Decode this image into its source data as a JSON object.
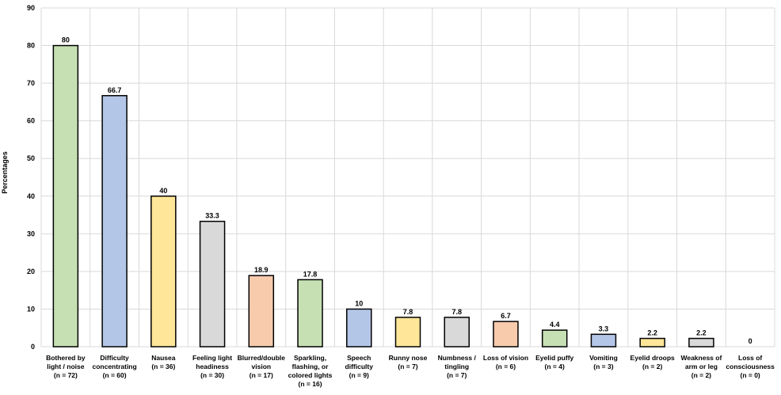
{
  "chart_data": {
    "type": "bar",
    "title": "",
    "xlabel": "",
    "ylabel": "Percentages",
    "ylim": [
      0,
      90
    ],
    "yticks": [
      0,
      10,
      20,
      30,
      40,
      50,
      60,
      70,
      80,
      90
    ],
    "grid": true,
    "categories": [
      [
        "Bothered by",
        "light / noise",
        "(n = 72)"
      ],
      [
        "Difficulty",
        "concentrating",
        "(n = 60)"
      ],
      [
        "Nausea",
        "(n = 36)"
      ],
      [
        "Feeling light",
        "headiness",
        "(n = 30)"
      ],
      [
        "Blurred/double",
        "vision",
        "(n = 17)"
      ],
      [
        "Sparkling,",
        "flashing, or",
        "colored lights",
        "(n = 16)"
      ],
      [
        "Speech",
        "difficulty",
        "(n = 9)"
      ],
      [
        "Runny nose",
        "(n = 7)"
      ],
      [
        "Numbness /",
        "tingling",
        "(n = 7)"
      ],
      [
        "Loss of vision",
        "(n = 6)"
      ],
      [
        "Eyelid puffy",
        "(n = 4)"
      ],
      [
        "Vomiting",
        "(n = 3)"
      ],
      [
        "Eyelid droops",
        "(n = 2)"
      ],
      [
        "Weakness of",
        "arm or leg",
        "(n = 2)"
      ],
      [
        "Loss of",
        "consciousness",
        "(n = 0)"
      ]
    ],
    "values": [
      80,
      66.7,
      40,
      33.3,
      18.9,
      17.8,
      10,
      7.8,
      7.8,
      6.7,
      4.4,
      3.3,
      2.2,
      2.2,
      0
    ],
    "value_labels": [
      "80",
      "66.7",
      "40",
      "33.3",
      "18.9",
      "17.8",
      "10",
      "7.8",
      "7.8",
      "6.7",
      "4.4",
      "3.3",
      "2.2",
      "2.2",
      "0"
    ],
    "bar_colors": [
      "#c6e0b4",
      "#b4c6e7",
      "#ffe699",
      "#d9d9d9",
      "#f8cbad",
      "#c6e0b4",
      "#b4c6e7",
      "#ffe699",
      "#d9d9d9",
      "#f8cbad",
      "#c6e0b4",
      "#b4c6e7",
      "#ffe699",
      "#d9d9d9",
      "#f8cbad"
    ],
    "bar_stroke": "#000000",
    "grid_color": "#d9d9d9"
  }
}
